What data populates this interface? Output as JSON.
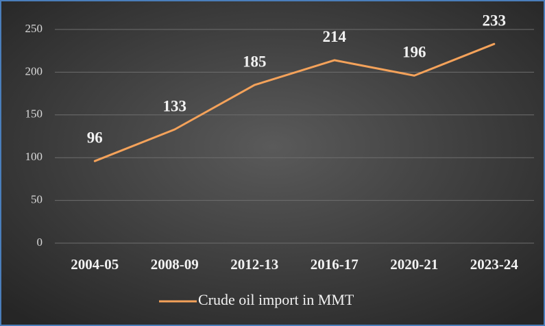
{
  "chart_data": {
    "type": "line",
    "categories": [
      "2004-05",
      "2008-09",
      "2012-13",
      "2016-17",
      "2020-21",
      "2023-24"
    ],
    "series": [
      {
        "name": "Crude oil import in MMT",
        "color": "#f4a25a",
        "values": [
          96,
          133,
          185,
          214,
          196,
          233
        ]
      }
    ],
    "ylim": [
      0,
      250
    ],
    "yticks": [
      0,
      50,
      100,
      150,
      200,
      250
    ],
    "grid": true,
    "legend": "bottom"
  }
}
